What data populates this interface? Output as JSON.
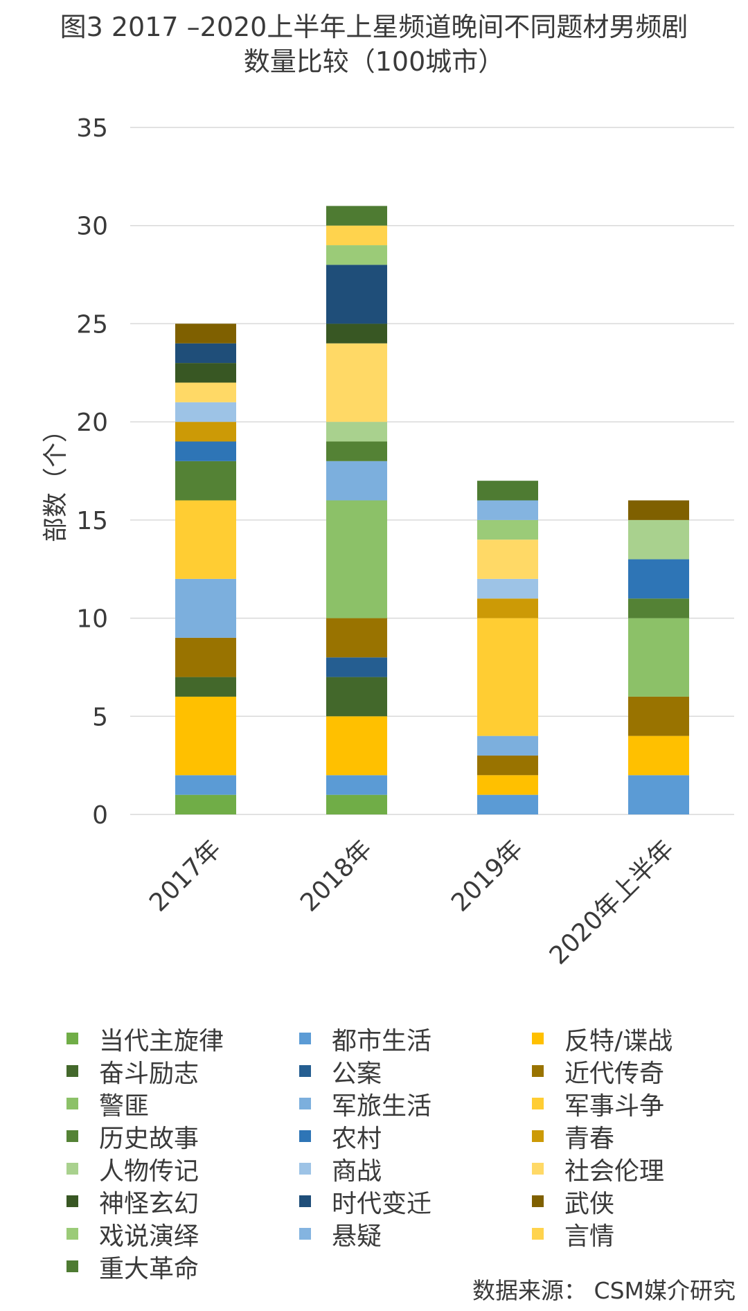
{
  "chart_data": {
    "type": "bar",
    "stacked": true,
    "title_line1": "图3  2017  –2020上半年上星频道晚间不同题材男频剧",
    "title_line2": "数量比较（100城市）",
    "ylabel": "部数（个）",
    "xlabel": "",
    "ylim": [
      0,
      35
    ],
    "yticks": [
      0,
      5,
      10,
      15,
      20,
      25,
      30,
      35
    ],
    "grid": true,
    "categories": [
      "2017年",
      "2018年",
      "2019年",
      "2020年上半年"
    ],
    "legend_position": "bottom",
    "series": [
      {
        "name": "当代主旋律",
        "color": "#70AD47",
        "values": [
          1,
          1,
          0,
          0
        ]
      },
      {
        "name": "都市生活",
        "color": "#5B9BD5",
        "values": [
          1,
          1,
          1,
          2
        ]
      },
      {
        "name": "反特/谍战",
        "color": "#FFC000",
        "values": [
          4,
          3,
          1,
          2
        ]
      },
      {
        "name": "奋斗励志",
        "color": "#43682B",
        "values": [
          1,
          2,
          0,
          0
        ]
      },
      {
        "name": "公案",
        "color": "#255E91",
        "values": [
          0,
          1,
          0,
          0
        ]
      },
      {
        "name": "近代传奇",
        "color": "#997300",
        "values": [
          2,
          2,
          1,
          2
        ]
      },
      {
        "name": "警匪",
        "color": "#8CC168",
        "values": [
          0,
          6,
          0,
          4
        ]
      },
      {
        "name": "军旅生活",
        "color": "#7CAFDD",
        "values": [
          3,
          2,
          1,
          0
        ]
      },
      {
        "name": "军事斗争",
        "color": "#FFCD33",
        "values": [
          4,
          0,
          6,
          0
        ]
      },
      {
        "name": "历史故事",
        "color": "#548235",
        "values": [
          2,
          1,
          0,
          1
        ]
      },
      {
        "name": "农村",
        "color": "#2E75B6",
        "values": [
          1,
          0,
          0,
          2
        ]
      },
      {
        "name": "青春",
        "color": "#CC9A06",
        "values": [
          1,
          0,
          1,
          0
        ]
      },
      {
        "name": "人物传记",
        "color": "#A9D18E",
        "values": [
          0,
          1,
          0,
          2
        ]
      },
      {
        "name": "商战",
        "color": "#9DC3E6",
        "values": [
          1,
          0,
          1,
          0
        ]
      },
      {
        "name": "社会伦理",
        "color": "#FFD966",
        "values": [
          1,
          4,
          2,
          0
        ]
      },
      {
        "name": "神怪玄幻",
        "color": "#385723",
        "values": [
          1,
          1,
          0,
          0
        ]
      },
      {
        "name": "时代变迁",
        "color": "#1F4E79",
        "values": [
          1,
          3,
          0,
          0
        ]
      },
      {
        "name": "武侠",
        "color": "#7F6000",
        "values": [
          1,
          0,
          0,
          1
        ]
      },
      {
        "name": "戏说演绎",
        "color": "#9BCB78",
        "values": [
          0,
          1,
          1,
          0
        ]
      },
      {
        "name": "悬疑",
        "color": "#84B4E0",
        "values": [
          0,
          0,
          1,
          0
        ]
      },
      {
        "name": "言情",
        "color": "#FFD34D",
        "values": [
          0,
          1,
          0,
          0
        ]
      },
      {
        "name": "重大革命",
        "color": "#4E7B32",
        "values": [
          0,
          1,
          1,
          0
        ]
      }
    ]
  },
  "source": "数据来源：  CSM媒介研究"
}
